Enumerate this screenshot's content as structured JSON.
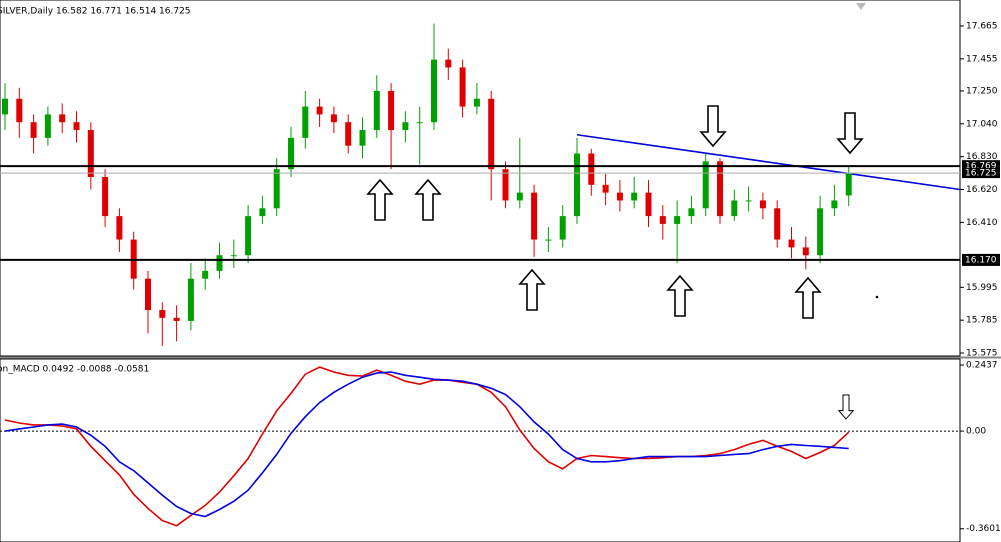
{
  "chart_data": [
    {
      "type": "candlestick",
      "title": "SILVER,Daily  16.582 16.771 16.514 16.725",
      "open": [
        17.1,
        17.2,
        17.05,
        16.95,
        17.1,
        17.05,
        17.0,
        16.7,
        16.45,
        16.3,
        16.05,
        15.85,
        15.8,
        15.78,
        16.05,
        16.1,
        16.2,
        16.2,
        16.45,
        16.5,
        16.75,
        16.95,
        17.15,
        17.1,
        17.05,
        16.9,
        17.0,
        17.25,
        17.0,
        17.05,
        17.05,
        17.45,
        17.4,
        17.15,
        17.2,
        16.75,
        16.55,
        16.6,
        16.3,
        16.3,
        16.45,
        16.85,
        16.65,
        16.6,
        16.55,
        16.6,
        16.45,
        16.4,
        16.45,
        16.5,
        16.8,
        16.45,
        16.55,
        16.55,
        16.5,
        16.3,
        16.25,
        16.2,
        16.5,
        16.582
      ],
      "high": [
        17.3,
        17.27,
        17.1,
        17.15,
        17.17,
        17.12,
        17.05,
        16.75,
        16.5,
        16.35,
        16.1,
        15.9,
        15.88,
        16.15,
        16.18,
        16.28,
        16.3,
        16.52,
        16.58,
        16.82,
        17.02,
        17.25,
        17.2,
        17.15,
        17.1,
        17.08,
        17.35,
        17.3,
        17.12,
        17.15,
        17.68,
        17.52,
        17.45,
        17.3,
        17.25,
        16.8,
        16.95,
        16.65,
        16.38,
        16.52,
        16.95,
        16.88,
        16.72,
        16.68,
        16.7,
        16.68,
        16.52,
        16.55,
        16.58,
        16.85,
        16.82,
        16.62,
        16.64,
        16.6,
        16.55,
        16.38,
        16.32,
        16.58,
        16.65,
        16.771
      ],
      "low": [
        17.0,
        16.95,
        16.85,
        16.9,
        16.98,
        16.92,
        16.62,
        16.38,
        16.22,
        15.98,
        15.7,
        15.62,
        15.65,
        15.72,
        15.98,
        16.05,
        16.12,
        16.15,
        16.4,
        16.45,
        16.7,
        16.88,
        17.02,
        16.98,
        16.85,
        16.82,
        16.95,
        16.75,
        16.92,
        16.78,
        17.0,
        17.32,
        17.08,
        17.1,
        16.55,
        16.5,
        16.5,
        16.19,
        16.22,
        16.25,
        16.4,
        16.58,
        16.52,
        16.48,
        16.5,
        16.38,
        16.3,
        16.15,
        16.4,
        16.45,
        16.4,
        16.42,
        16.48,
        16.43,
        16.25,
        16.18,
        16.11,
        16.15,
        16.45,
        16.514
      ],
      "close": [
        17.2,
        17.05,
        16.95,
        17.1,
        17.05,
        17.0,
        16.7,
        16.45,
        16.3,
        16.05,
        15.85,
        15.8,
        15.78,
        16.05,
        16.1,
        16.2,
        16.2,
        16.45,
        16.5,
        16.75,
        16.95,
        17.15,
        17.1,
        17.05,
        16.9,
        17.0,
        17.25,
        17.0,
        17.05,
        17.05,
        17.45,
        17.4,
        17.15,
        17.2,
        16.75,
        16.55,
        16.6,
        16.3,
        16.3,
        16.45,
        16.85,
        16.65,
        16.6,
        16.55,
        16.6,
        16.45,
        16.4,
        16.45,
        16.5,
        16.8,
        16.45,
        16.55,
        16.55,
        16.5,
        16.3,
        16.25,
        16.2,
        16.5,
        16.55,
        16.725
      ],
      "up_color": "#00a000",
      "down_color": "#e00000",
      "ylim": [
        15.556,
        17.831
      ],
      "yticks": [
        17.665,
        17.455,
        {
          "value": 17.25,
          "label": "17.250"
        },
        {
          "value": 17.04,
          "label": "17.040"
        },
        {
          "value": 16.83,
          "label": "16.830"
        },
        {
          "value": 16.62,
          "label": "16.620"
        },
        {
          "value": 16.41,
          "label": "16.410"
        },
        15.995,
        15.785,
        15.575
      ],
      "levels": [
        16.769,
        {
          "value": 16.17,
          "label": "16.170"
        }
      ],
      "bid": 16.725,
      "trendline": [
        16.97,
        16.62
      ],
      "trendline_color": "#0000e0"
    },
    {
      "type": "line",
      "title": "on_MACD 0.0492 -0.0088 -0.0581",
      "series": [
        {
          "color": "#e00000",
          "values": [
            0.041,
            0.03,
            0.023,
            0.023,
            0.019,
            0.008,
            -0.056,
            -0.109,
            -0.161,
            -0.233,
            -0.285,
            -0.33,
            -0.349,
            -0.311,
            -0.274,
            -0.225,
            -0.165,
            -0.101,
            -0.011,
            0.075,
            0.139,
            0.21,
            0.236,
            0.218,
            0.206,
            0.203,
            0.225,
            0.206,
            0.184,
            0.173,
            0.188,
            0.188,
            0.18,
            0.173,
            0.143,
            0.09,
            0.004,
            -0.064,
            -0.113,
            -0.139,
            -0.101,
            -0.09,
            -0.094,
            -0.098,
            -0.101,
            -0.101,
            -0.098,
            -0.094,
            -0.094,
            -0.09,
            -0.083,
            -0.068,
            -0.049,
            -0.034,
            -0.056,
            -0.075,
            -0.101,
            -0.079,
            -0.053,
            -0.004
          ]
        },
        {
          "color": "#0000e0",
          "values": [
            0.0,
            0.008,
            0.015,
            0.023,
            0.026,
            0.015,
            -0.015,
            -0.056,
            -0.113,
            -0.146,
            -0.191,
            -0.236,
            -0.278,
            -0.304,
            -0.315,
            -0.289,
            -0.259,
            -0.218,
            -0.154,
            -0.086,
            -0.008,
            0.053,
            0.105,
            0.143,
            0.173,
            0.199,
            0.214,
            0.218,
            0.206,
            0.199,
            0.191,
            0.188,
            0.184,
            0.173,
            0.158,
            0.135,
            0.09,
            0.034,
            -0.011,
            -0.068,
            -0.101,
            -0.113,
            -0.113,
            -0.109,
            -0.101,
            -0.094,
            -0.094,
            -0.094,
            -0.094,
            -0.094,
            -0.09,
            -0.086,
            -0.083,
            -0.068,
            -0.056,
            -0.049,
            -0.053,
            -0.056,
            -0.06,
            -0.064
          ]
        }
      ],
      "ylim": [
        -0.409,
        0.266
      ],
      "yticks": [
        0.2437,
        {
          "value": 0,
          "label": "0.00"
        },
        -0.3601
      ]
    }
  ]
}
